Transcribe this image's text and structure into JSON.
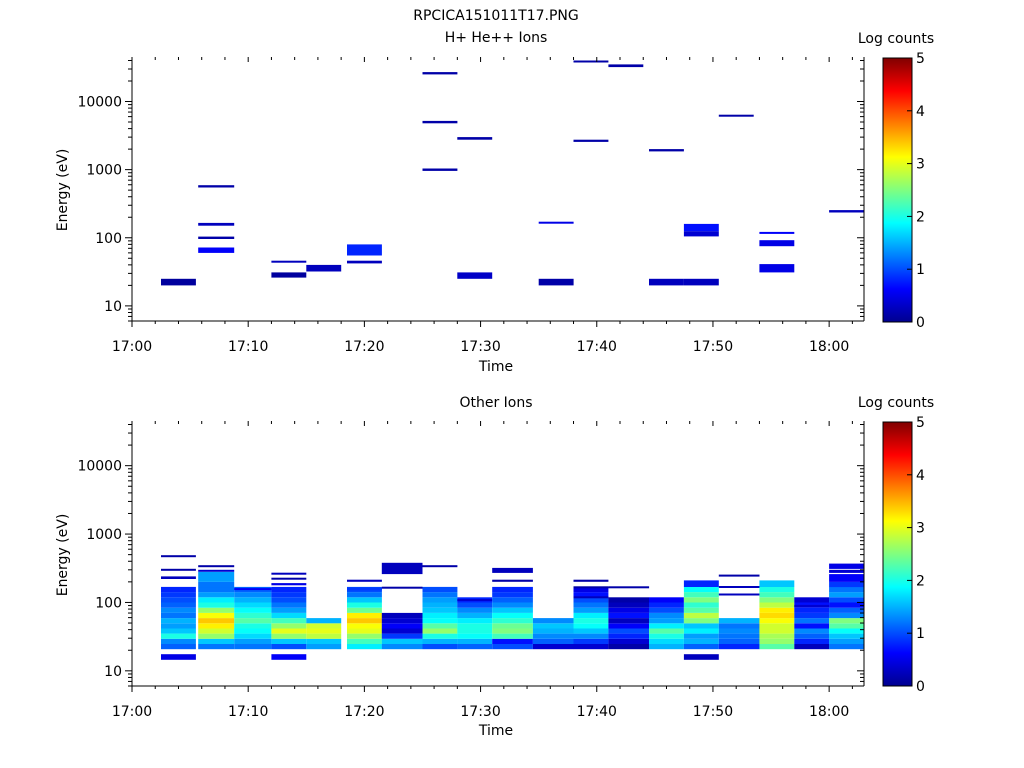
{
  "figure_title": "RPCICA151011T17.PNG",
  "chart_data": [
    {
      "type": "heatmap",
      "title": "H+ He++ Ions",
      "xlabel": "Time",
      "ylabel": "Energy (eV)",
      "x_ticks": [
        "17:00",
        "17:10",
        "17:20",
        "17:30",
        "17:40",
        "17:50",
        "18:00"
      ],
      "y_scale": "log",
      "y_ticks": [
        "10",
        "100",
        "1000",
        "10000"
      ],
      "xlim": [
        "17:00",
        "18:03"
      ],
      "ylim": [
        6,
        45000
      ],
      "colorbar": {
        "label": "Log counts",
        "ticks": [
          "0",
          "1",
          "2",
          "3",
          "4",
          "5"
        ],
        "range": [
          0,
          5
        ],
        "colormap": "jet"
      },
      "x_time_bins": [
        "17:02",
        "17:05",
        "17:08",
        "17:12",
        "17:15",
        "17:18",
        "17:22",
        "17:25",
        "17:28",
        "17:32",
        "17:35",
        "17:38",
        "17:42",
        "17:45",
        "17:48",
        "17:52",
        "17:55",
        "17:58",
        "18:02"
      ],
      "cells": [
        {
          "t0": "17:02.5",
          "t1": "17:05.5",
          "e0": 20,
          "e1": 25,
          "v": 0.15
        },
        {
          "t0": "17:05.7",
          "t1": "17:08.8",
          "e0": 545,
          "e1": 590,
          "v": 0.2
        },
        {
          "t0": "17:05.7",
          "t1": "17:08.8",
          "e0": 150,
          "e1": 165,
          "v": 0.3
        },
        {
          "t0": "17:05.7",
          "t1": "17:08.8",
          "e0": 96,
          "e1": 104,
          "v": 0.2
        },
        {
          "t0": "17:05.7",
          "t1": "17:08.8",
          "e0": 60,
          "e1": 72,
          "v": 0.6
        },
        {
          "t0": "17:12",
          "t1": "17:15",
          "e0": 43,
          "e1": 46,
          "v": 0.3
        },
        {
          "t0": "17:12",
          "t1": "17:15",
          "e0": 26,
          "e1": 31,
          "v": 0.15
        },
        {
          "t0": "17:15",
          "t1": "17:18",
          "e0": 32,
          "e1": 40,
          "v": 0.3
        },
        {
          "t0": "17:18.5",
          "t1": "17:21.5",
          "e0": 55,
          "e1": 80,
          "v": 0.8
        },
        {
          "t0": "17:18.5",
          "t1": "17:21.5",
          "e0": 42,
          "e1": 46,
          "v": 0.3
        },
        {
          "t0": "17:25",
          "t1": "17:28",
          "e0": 25000,
          "e1": 27000,
          "v": 0.2
        },
        {
          "t0": "17:25",
          "t1": "17:28",
          "e0": 4800,
          "e1": 5200,
          "v": 0.2
        },
        {
          "t0": "17:25",
          "t1": "17:28",
          "e0": 960,
          "e1": 1040,
          "v": 0.2
        },
        {
          "t0": "17:28",
          "t1": "17:31",
          "e0": 2750,
          "e1": 3000,
          "v": 0.2
        },
        {
          "t0": "17:28",
          "t1": "17:31",
          "e0": 25,
          "e1": 31,
          "v": 0.35
        },
        {
          "t0": "17:35",
          "t1": "17:38",
          "e0": 166,
          "e1": 172,
          "v": 0.5
        },
        {
          "t0": "17:35",
          "t1": "17:38",
          "e0": 20,
          "e1": 25,
          "v": 0.2
        },
        {
          "t0": "17:38",
          "t1": "17:41",
          "e0": 38000,
          "e1": 40000,
          "v": 0.2
        },
        {
          "t0": "17:38",
          "t1": "17:41",
          "e0": 2550,
          "e1": 2750,
          "v": 0.2
        },
        {
          "t0": "17:41",
          "t1": "17:44",
          "e0": 32000,
          "e1": 35000,
          "v": 0.2
        },
        {
          "t0": "17:44.5",
          "t1": "17:47.5",
          "e0": 1850,
          "e1": 2000,
          "v": 0.2
        },
        {
          "t0": "17:44.5",
          "t1": "17:47.5",
          "e0": 20,
          "e1": 25,
          "v": 0.3
        },
        {
          "t0": "17:47.5",
          "t1": "17:50.5",
          "e0": 125,
          "e1": 160,
          "v": 0.7
        },
        {
          "t0": "17:47.5",
          "t1": "17:50.5",
          "e0": 105,
          "e1": 125,
          "v": 0.4
        },
        {
          "t0": "17:47.5",
          "t1": "17:50.5",
          "e0": 20,
          "e1": 25,
          "v": 0.3
        },
        {
          "t0": "17:50.5",
          "t1": "17:53.5",
          "e0": 6000,
          "e1": 6400,
          "v": 0.2
        },
        {
          "t0": "17:54",
          "t1": "17:57",
          "e0": 117,
          "e1": 122,
          "v": 0.6
        },
        {
          "t0": "17:54",
          "t1": "17:57",
          "e0": 75,
          "e1": 92,
          "v": 0.5
        },
        {
          "t0": "17:54",
          "t1": "17:57",
          "e0": 31,
          "e1": 41,
          "v": 0.5
        },
        {
          "t0": "18:00",
          "t1": "18:03",
          "e0": 235,
          "e1": 255,
          "v": 0.3
        }
      ]
    },
    {
      "type": "heatmap",
      "title": "Other Ions",
      "xlabel": "Time",
      "ylabel": "Energy (eV)",
      "x_ticks": [
        "17:00",
        "17:10",
        "17:20",
        "17:30",
        "17:40",
        "17:50",
        "18:00"
      ],
      "y_scale": "log",
      "y_ticks": [
        "10",
        "100",
        "1000",
        "10000"
      ],
      "xlim": [
        "17:00",
        "18:03"
      ],
      "ylim": [
        6,
        45000
      ],
      "colorbar": {
        "label": "Log counts",
        "ticks": [
          "0",
          "1",
          "2",
          "3",
          "4",
          "5"
        ],
        "range": [
          0,
          5
        ],
        "colormap": "jet"
      },
      "energy_bin_edges": [
        20.7,
        24.7,
        29.4,
        35.0,
        41.7,
        49.6,
        59.1,
        70.4,
        83.8,
        99.8,
        118.8,
        141.5,
        168.5
      ],
      "columns": [
        {
          "t0": "17:02.5",
          "t1": "17:05.5",
          "values": [
            1.1,
            1.3,
            2.0,
            1.6,
            1.4,
            1.5,
            1.2,
            1.3,
            1.1,
            1.0,
            0.9,
            0.8
          ],
          "extra": [
            [
              14.5,
              17.5,
              0.5
            ],
            [
              220,
              240,
              0.3
            ],
            [
              295,
              310,
              0.2
            ],
            [
              460,
              490,
              0.2
            ]
          ]
        },
        {
          "t0": "17:05.7",
          "t1": "17:08.8",
          "values": [
            1.2,
            1.6,
            2.6,
            2.9,
            3.2,
            3.4,
            3.1,
            2.6,
            2.0,
            1.8,
            1.4,
            1.2
          ],
          "extra": [
            [
              168,
              200,
              1.2
            ],
            [
              200,
              280,
              1.4
            ],
            [
              285,
              300,
              0.4
            ],
            [
              330,
              350,
              0.2
            ]
          ]
        },
        {
          "t0": "17:08.8",
          "t1": "17:12",
          "values": [
            1.2,
            1.4,
            1.7,
            1.9,
            2.0,
            2.3,
            2.1,
            1.9,
            1.7,
            1.5,
            1.3,
            1.1
          ],
          "extra": [
            [
              152,
              162,
              0.6
            ]
          ]
        },
        {
          "t0": "17:12",
          "t1": "17:15",
          "values": [
            1.0,
            1.6,
            2.6,
            3.0,
            2.6,
            2.2,
            1.7,
            1.4,
            1.2,
            1.0,
            0.9,
            0.8
          ],
          "extra": [
            [
              14.5,
              17.5,
              0.6
            ],
            [
              178,
              192,
              0.5
            ],
            [
              215,
              230,
              0.2
            ],
            [
              258,
              272,
              0.3
            ]
          ]
        },
        {
          "t0": "17:15",
          "t1": "17:18",
          "values": [
            1.4,
            1.6,
            2.8,
            3.0,
            2.9,
            1.5,
            0,
            0,
            0,
            0,
            0,
            0
          ],
          "extra": []
        },
        {
          "t0": "17:18.5",
          "t1": "17:21.5",
          "values": [
            1.8,
            2.2,
            2.6,
            3.0,
            3.1,
            3.4,
            3.2,
            2.4,
            2.0,
            1.6,
            1.2,
            1.0
          ],
          "extra": [
            [
              150,
              165,
              0.9
            ],
            [
              200,
              215,
              0.3
            ]
          ]
        },
        {
          "t0": "17:21.5",
          "t1": "17:25",
          "values": [
            1.3,
            1.6,
            0.9,
            0.4,
            0.6,
            0.4,
            0.3,
            0,
            0,
            0,
            0,
            0
          ],
          "extra": [
            [
              160,
              170,
              0.2
            ],
            [
              260,
              380,
              0.3
            ]
          ]
        },
        {
          "t0": "17:25",
          "t1": "17:28",
          "values": [
            1.0,
            1.5,
            2.0,
            2.6,
            2.3,
            1.9,
            1.8,
            1.6,
            1.5,
            1.4,
            1.2,
            1.0
          ],
          "extra": [
            [
              330,
              350,
              0.2
            ]
          ]
        },
        {
          "t0": "17:28",
          "t1": "17:31",
          "values": [
            1.1,
            1.5,
            1.9,
            2.0,
            2.0,
            1.8,
            1.5,
            1.3,
            1.0,
            0.8,
            0,
            0
          ],
          "extra": [
            [
              105,
              112,
              0.4
            ]
          ]
        },
        {
          "t0": "17:31",
          "t1": "17:34.5",
          "values": [
            1.0,
            0.7,
            2.2,
            2.5,
            2.4,
            2.1,
            1.9,
            1.6,
            1.3,
            1.1,
            0.9,
            0.8
          ],
          "extra": [
            [
              200,
              215,
              0.2
            ],
            [
              270,
              320,
              0.3
            ]
          ]
        },
        {
          "t0": "17:34.5",
          "t1": "17:38",
          "values": [
            0.4,
            1.1,
            1.3,
            1.5,
            1.6,
            1.3,
            0,
            0,
            0,
            0,
            0,
            0
          ],
          "extra": []
        },
        {
          "t0": "17:38",
          "t1": "17:41",
          "values": [
            0.4,
            0.9,
            1.3,
            1.6,
            1.9,
            2.0,
            1.8,
            1.4,
            1.2,
            1.0,
            0.7,
            0.5
          ],
          "extra": [
            [
              118,
              123,
              0.3
            ],
            [
              165,
              172,
              0.2
            ],
            [
              200,
              215,
              0.2
            ]
          ]
        },
        {
          "t0": "17:41",
          "t1": "17:44.5",
          "values": [
            0.2,
            0.4,
            0.8,
            1.0,
            0.6,
            0.3,
            0.7,
            0.5,
            0.3,
            0.2,
            0,
            0
          ],
          "extra": [
            [
              165,
              172,
              0.2
            ]
          ]
        },
        {
          "t0": "17:44.5",
          "t1": "17:47.5",
          "values": [
            1.5,
            1.7,
            2.0,
            2.3,
            1.8,
            1.4,
            1.3,
            1.0,
            0.8,
            0.6,
            0,
            0
          ],
          "extra": []
        },
        {
          "t0": "17:47.5",
          "t1": "17:50.5",
          "values": [
            1.1,
            1.5,
            1.4,
            1.8,
            1.6,
            2.5,
            2.8,
            2.3,
            2.1,
            2.5,
            2.2,
            1.9
          ],
          "extra": [
            [
              14.5,
              17.5,
              0.3
            ],
            [
              168,
              210,
              0.8
            ]
          ]
        },
        {
          "t0": "17:50.5",
          "t1": "17:54",
          "values": [
            0.8,
            1.1,
            1.2,
            1.3,
            1.2,
            1.5,
            0,
            0,
            0,
            0,
            0,
            0
          ],
          "extra": [
            [
              128,
              135,
              0.3
            ],
            [
              168,
              174,
              0.3
            ],
            [
              240,
              255,
              0.2
            ]
          ]
        },
        {
          "t0": "17:54",
          "t1": "17:57",
          "values": [
            2.3,
            2.6,
            2.7,
            2.9,
            2.9,
            3.1,
            3.3,
            3.2,
            2.8,
            2.5,
            2.2,
            2.0
          ],
          "extra": [
            [
              168,
              210,
              1.6
            ]
          ]
        },
        {
          "t0": "17:57",
          "t1": "18:00",
          "values": [
            0.3,
            0.8,
            1.1,
            1.3,
            0.7,
            1.2,
            0.9,
            0.8,
            0.7,
            0.4,
            0,
            0
          ],
          "extra": [
            [
              85,
              92,
              0.4
            ]
          ]
        },
        {
          "t0": "18:00",
          "t1": "18:03",
          "values": [
            1.2,
            1.4,
            1.6,
            1.9,
            2.3,
            2.5,
            1.3,
            1.1,
            0.7,
            1.0,
            1.4,
            1.2
          ],
          "extra": [
            [
              168,
              200,
              0.9
            ],
            [
              200,
              260,
              0.6
            ],
            [
              270,
              300,
              0.4
            ],
            [
              310,
              370,
              0.5
            ]
          ]
        }
      ]
    }
  ]
}
